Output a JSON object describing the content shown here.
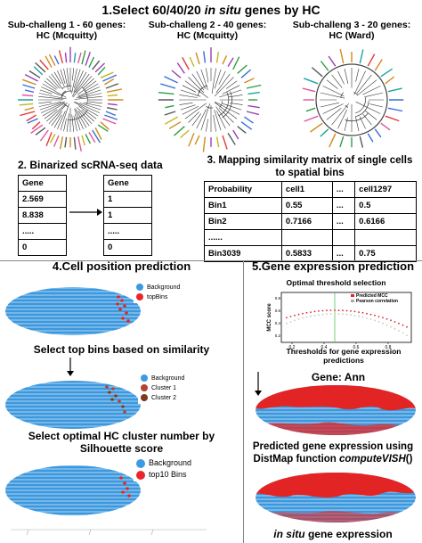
{
  "section1": {
    "title_prefix": "1.Select 60/40/20 ",
    "title_em": "in situ",
    "title_suffix": " genes by HC",
    "subchallenges": [
      {
        "line1": "Sub-challeng 1 - 60 genes:",
        "line2": "HC (Mcquitty)"
      },
      {
        "line1": "Sub-challeng 2 - 40 genes:",
        "line2": "HC (Mcquitty)"
      },
      {
        "line1": "Sub-challeng 3 - 20 genes:",
        "line2": "HC (Ward)"
      }
    ]
  },
  "section2": {
    "title": "2. Binarized scRNA-seq data",
    "left_table": [
      "Gene",
      "2.569",
      "8.838",
      ".....",
      "0"
    ],
    "right_table": [
      "Gene",
      "1",
      "1",
      ".....",
      "0"
    ]
  },
  "section3": {
    "title_line1": "3. Mapping similarity matrix of single cells",
    "title_line2": "to spatial bins",
    "header": [
      "Probability",
      "cell1",
      "...",
      "cell1297"
    ],
    "rows": [
      [
        "Bin1",
        "0.55",
        "...",
        "0.5"
      ],
      [
        "Bin2",
        "0.7166",
        "...",
        "0.6166"
      ],
      [
        "......",
        "",
        "",
        ""
      ],
      [
        "Bin3039",
        "0.5833",
        "...",
        "0.75"
      ]
    ]
  },
  "section4": {
    "title": "4.Cell position prediction",
    "legend1": [
      "Background",
      "topBins"
    ],
    "caption1": "Select top bins based on similarity",
    "legend2": [
      "Background",
      "Cluster 1",
      "Cluster 2"
    ],
    "caption2_line1": "Select optimal HC cluster number by",
    "caption2_line2": "Silhouette score",
    "legend3": [
      "Background",
      "top10 Bins"
    ]
  },
  "section5": {
    "title": "5.Gene expression prediction",
    "plot_title": "Optimal threshold selection",
    "plot_ylabel": "MCC score",
    "plot_xlabel_line1": "Thresholds for gene expression",
    "plot_xlabel_line2": "predictions",
    "plot_legend": [
      "Predicted MCC",
      "Pearson correlation"
    ],
    "plot_xticks": [
      "0.2",
      "0.4",
      "0.6",
      "0.8"
    ],
    "plot_yticks": [
      "0.8",
      "0.6",
      "0.4",
      "0.2"
    ],
    "gene_label": "Gene: Ann",
    "caption1_line1": "Predicted gene expression using",
    "caption1_line2_prefix": "DistMap function ",
    "caption1_line2_em": "computeVISH",
    "caption1_line2_suffix": "()",
    "caption2_em": "in situ",
    "caption2_suffix": " gene expression"
  },
  "colors": {
    "background_dot": "#3b9be0",
    "topbins_dot": "#e8262b",
    "cluster1_dot": "#b5412f",
    "cluster2_dot": "#7a3c1c",
    "embryo_blue": "#3b98de",
    "embryo_red": "#e32424"
  }
}
